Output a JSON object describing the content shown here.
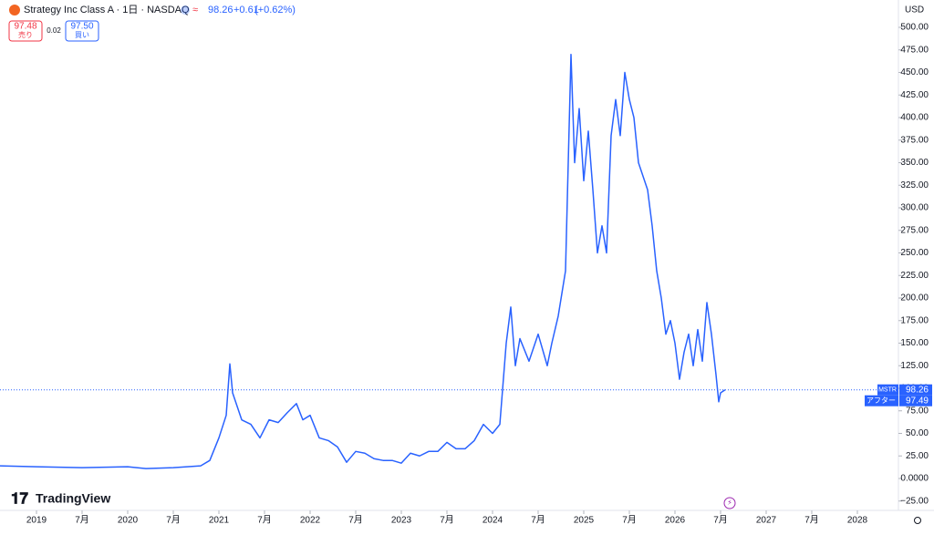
{
  "header": {
    "title": "Strategy Inc Class A · 1日 · NASDAQ",
    "price": "98.26",
    "change": "+0.61",
    "change_pct": "(+0.62%)",
    "sell_price": "97.48",
    "sell_label": "売り",
    "spread": "0.02",
    "buy_price": "97.50",
    "buy_label": "買い",
    "currency": "USD",
    "brand": "TradingView"
  },
  "chart_data": {
    "type": "line",
    "color": "#2962ff",
    "xlim": [
      2018.6,
      2028.45
    ],
    "xticks": [
      {
        "value": 2019,
        "label": "2019"
      },
      {
        "value": 2019.5,
        "label": "7月"
      },
      {
        "value": 2020,
        "label": "2020"
      },
      {
        "value": 2020.5,
        "label": "7月"
      },
      {
        "value": 2021,
        "label": "2021"
      },
      {
        "value": 2021.5,
        "label": "7月"
      },
      {
        "value": 2022,
        "label": "2022"
      },
      {
        "value": 2022.5,
        "label": "7月"
      },
      {
        "value": 2023,
        "label": "2023"
      },
      {
        "value": 2023.5,
        "label": "7月"
      },
      {
        "value": 2024,
        "label": "2024"
      },
      {
        "value": 2024.5,
        "label": "7月"
      },
      {
        "value": 2025,
        "label": "2025"
      },
      {
        "value": 2025.5,
        "label": "7月"
      },
      {
        "value": 2026,
        "label": "2026"
      },
      {
        "value": 2026.5,
        "label": "7月"
      },
      {
        "value": 2027,
        "label": "2027"
      },
      {
        "value": 2027.5,
        "label": "7月"
      },
      {
        "value": 2028,
        "label": "2028"
      }
    ],
    "ylim": [
      -30,
      505
    ],
    "yticks": [
      {
        "value": -25,
        "label": "−25.00"
      },
      {
        "value": 0,
        "label": "0.0000"
      },
      {
        "value": 25,
        "label": "25.00"
      },
      {
        "value": 50,
        "label": "50.00"
      },
      {
        "value": 75,
        "label": "75.00"
      },
      {
        "value": 100,
        "label": "100.00"
      },
      {
        "value": 125,
        "label": "125.00"
      },
      {
        "value": 150,
        "label": "150.00"
      },
      {
        "value": 175,
        "label": "175.00"
      },
      {
        "value": 200,
        "label": "200.00"
      },
      {
        "value": 225,
        "label": "225.00"
      },
      {
        "value": 250,
        "label": "250.00"
      },
      {
        "value": 275,
        "label": "275.00"
      },
      {
        "value": 300,
        "label": "300.00"
      },
      {
        "value": 325,
        "label": "325.00"
      },
      {
        "value": 350,
        "label": "350.00"
      },
      {
        "value": 375,
        "label": "375.00"
      },
      {
        "value": 400,
        "label": "400.00"
      },
      {
        "value": 425,
        "label": "425.00"
      },
      {
        "value": 450,
        "label": "450.00"
      },
      {
        "value": 475,
        "label": "475.00"
      },
      {
        "value": 500,
        "label": "500.00"
      }
    ],
    "x": [
      2018.6,
      2019.0,
      2019.5,
      2020.0,
      2020.2,
      2020.5,
      2020.8,
      2020.9,
      2021.0,
      2021.08,
      2021.12,
      2021.15,
      2021.25,
      2021.35,
      2021.45,
      2021.55,
      2021.65,
      2021.75,
      2021.85,
      2021.92,
      2022.0,
      2022.1,
      2022.2,
      2022.3,
      2022.4,
      2022.5,
      2022.6,
      2022.7,
      2022.8,
      2022.9,
      2023.0,
      2023.1,
      2023.2,
      2023.3,
      2023.4,
      2023.5,
      2023.6,
      2023.7,
      2023.8,
      2023.9,
      2024.0,
      2024.08,
      2024.15,
      2024.2,
      2024.25,
      2024.3,
      2024.4,
      2024.5,
      2024.6,
      2024.65,
      2024.72,
      2024.8,
      2024.86,
      2024.9,
      2024.95,
      2025.0,
      2025.05,
      2025.1,
      2025.15,
      2025.2,
      2025.25,
      2025.3,
      2025.35,
      2025.4,
      2025.45,
      2025.5,
      2025.55,
      2025.6,
      2025.7,
      2025.75,
      2025.8,
      2025.85,
      2025.9,
      2025.95,
      2026.0,
      2026.05,
      2026.1,
      2026.15,
      2026.2,
      2026.25,
      2026.3,
      2026.35,
      2026.4,
      2026.45,
      2026.48,
      2026.5,
      2026.55
    ],
    "series": [
      {
        "name": "MSTR",
        "color": "#2962ff",
        "values": [
          14,
          13,
          12,
          13,
          11,
          12,
          14,
          20,
          45,
          70,
          127,
          95,
          65,
          60,
          45,
          65,
          62,
          73,
          83,
          65,
          70,
          45,
          42,
          35,
          18,
          30,
          28,
          22,
          20,
          20,
          17,
          28,
          25,
          30,
          30,
          40,
          33,
          33,
          42,
          60,
          50,
          60,
          150,
          190,
          125,
          155,
          130,
          160,
          125,
          150,
          180,
          230,
          470,
          350,
          410,
          330,
          385,
          320,
          250,
          280,
          250,
          380,
          420,
          380,
          450,
          420,
          400,
          350,
          320,
          280,
          230,
          200,
          160,
          175,
          150,
          110,
          140,
          160,
          125,
          165,
          130,
          195,
          160,
          115,
          85,
          95,
          98.26
        ]
      }
    ],
    "last_price": {
      "label": "MSTR",
      "value": 98.26,
      "value_label": "98.26"
    },
    "after_hours": {
      "label": "アフター",
      "value": 97.49,
      "value_label": "97.49"
    }
  }
}
